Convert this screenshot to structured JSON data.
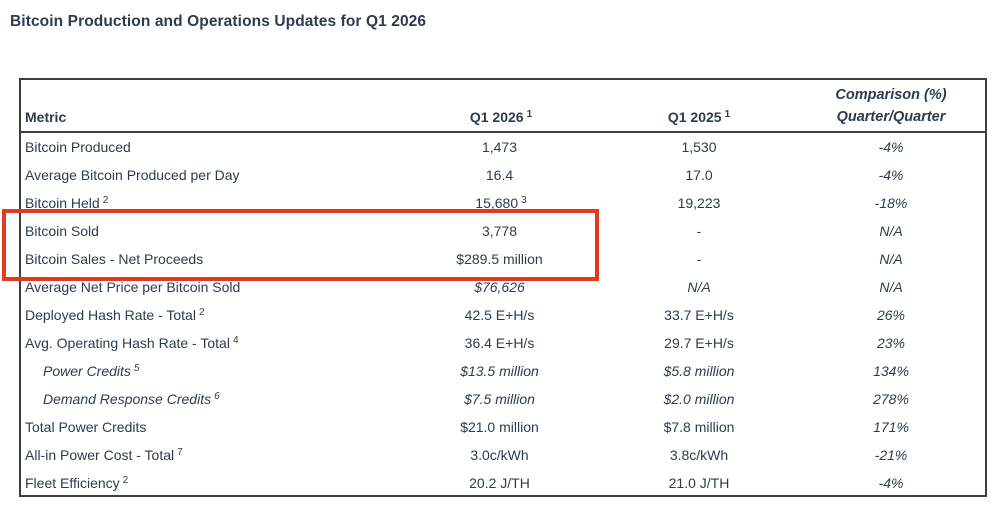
{
  "title": "Bitcoin Production and Operations Updates for Q1 2026",
  "colors": {
    "text": "#2c3c50",
    "table_border": "#3f3f3f",
    "highlight_red": "#e23a1e",
    "background": "#ffffff"
  },
  "table": {
    "headers": {
      "metric": "Metric",
      "q1_2026": "Q1 2026",
      "q1_2026_sup": "1",
      "q1_2025": "Q1 2025",
      "q1_2025_sup": "1",
      "comparison_line1": "Comparison (%)",
      "comparison_line2": "Quarter/Quarter"
    },
    "rows": [
      {
        "metric": "Bitcoin Produced",
        "metric_sup": "",
        "v2026": "1,473",
        "v2026_sup": "",
        "v2025": "1,530",
        "comp": "-4%",
        "indent": false,
        "italic_label": false,
        "italic_values": false,
        "highlighted": false
      },
      {
        "metric": "Average Bitcoin Produced per Day",
        "metric_sup": "",
        "v2026": "16.4",
        "v2026_sup": "",
        "v2025": "17.0",
        "comp": "-4%",
        "indent": false,
        "italic_label": false,
        "italic_values": false,
        "highlighted": false
      },
      {
        "metric": "Bitcoin Held",
        "metric_sup": "2",
        "v2026": "15,680",
        "v2026_sup": "3",
        "v2025": "19,223",
        "comp": "-18%",
        "indent": false,
        "italic_label": false,
        "italic_values": false,
        "highlighted": false
      },
      {
        "metric": "Bitcoin Sold",
        "metric_sup": "",
        "v2026": "3,778",
        "v2026_sup": "",
        "v2025": "-",
        "comp": "N/A",
        "indent": false,
        "italic_label": false,
        "italic_values": false,
        "highlighted": true
      },
      {
        "metric": "Bitcoin Sales - Net Proceeds",
        "metric_sup": "",
        "v2026": "$289.5 million",
        "v2026_sup": "",
        "v2025": "-",
        "comp": "N/A",
        "indent": false,
        "italic_label": false,
        "italic_values": false,
        "highlighted": true
      },
      {
        "metric": "Average Net Price per Bitcoin Sold",
        "metric_sup": "",
        "v2026": "$76,626",
        "v2026_sup": "",
        "v2025": "N/A",
        "comp": "N/A",
        "indent": false,
        "italic_label": false,
        "italic_values": true,
        "highlighted": false
      },
      {
        "metric": "Deployed Hash Rate - Total",
        "metric_sup": "2",
        "v2026": "42.5 E+H/s",
        "v2026_sup": "",
        "v2025": "33.7 E+H/s",
        "comp": "26%",
        "indent": false,
        "italic_label": false,
        "italic_values": false,
        "highlighted": false
      },
      {
        "metric": "Avg. Operating Hash Rate - Total",
        "metric_sup": "4",
        "v2026": "36.4 E+H/s",
        "v2026_sup": "",
        "v2025": "29.7 E+H/s",
        "comp": "23%",
        "indent": false,
        "italic_label": false,
        "italic_values": false,
        "highlighted": false
      },
      {
        "metric": "Power Credits",
        "metric_sup": "5",
        "v2026": "$13.5 million",
        "v2026_sup": "",
        "v2025": "$5.8 million",
        "comp": "134%",
        "indent": true,
        "italic_label": true,
        "italic_values": true,
        "highlighted": false
      },
      {
        "metric": "Demand Response Credits",
        "metric_sup": "6",
        "v2026": "$7.5 million",
        "v2026_sup": "",
        "v2025": "$2.0 million",
        "comp": "278%",
        "indent": true,
        "italic_label": true,
        "italic_values": true,
        "highlighted": false
      },
      {
        "metric": "Total Power Credits",
        "metric_sup": "",
        "v2026": "$21.0 million",
        "v2026_sup": "",
        "v2025": "$7.8 million",
        "comp": "171%",
        "indent": false,
        "italic_label": false,
        "italic_values": false,
        "highlighted": false
      },
      {
        "metric": "All-in Power Cost - Total",
        "metric_sup": "7",
        "v2026": "3.0c/kWh",
        "v2026_sup": "",
        "v2025": "3.8c/kWh",
        "comp": "-21%",
        "indent": false,
        "italic_label": false,
        "italic_values": false,
        "highlighted": false
      },
      {
        "metric": "Fleet Efficiency",
        "metric_sup": "2",
        "v2026": "20.2 J/TH",
        "v2026_sup": "",
        "v2025": "21.0 J/TH",
        "comp": "-4%",
        "indent": false,
        "italic_label": false,
        "italic_values": false,
        "highlighted": false
      }
    ]
  },
  "annotation": {
    "type": "highlight-box",
    "color": "#e23a1e",
    "rows_covered": [
      "Bitcoin Sold",
      "Bitcoin Sales - Net Proceeds"
    ]
  }
}
